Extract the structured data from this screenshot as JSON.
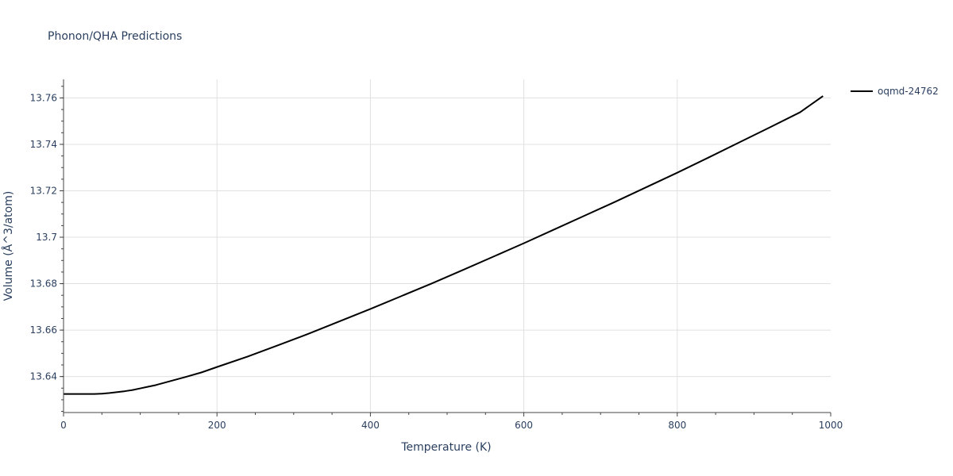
{
  "chart_data": {
    "type": "line",
    "title": "Phonon/QHA Predictions",
    "xlabel": "Temperature (K)",
    "ylabel": "Volume (Å^3/atom)",
    "xlim": [
      0,
      1000
    ],
    "ylim": [
      13.6245,
      13.768
    ],
    "x_ticks": [
      0,
      200,
      400,
      600,
      800,
      1000
    ],
    "x_tick_labels": [
      "0",
      "200",
      "400",
      "600",
      "800",
      "1000"
    ],
    "y_ticks": [
      13.64,
      13.66,
      13.68,
      13.7,
      13.72,
      13.74,
      13.76
    ],
    "y_tick_labels": [
      "13.64",
      "13.66",
      "13.68",
      "13.7",
      "13.72",
      "13.74",
      "13.76"
    ],
    "grid": true,
    "legend_position": "top-right",
    "series": [
      {
        "name": "oqmd-24762",
        "color": "#000000",
        "x": [
          0,
          10,
          20,
          30,
          40,
          50,
          60,
          70,
          80,
          90,
          100,
          110,
          120,
          140,
          160,
          180,
          200,
          240,
          280,
          320,
          360,
          400,
          440,
          480,
          520,
          560,
          600,
          640,
          680,
          720,
          760,
          800,
          840,
          880,
          920,
          960,
          990
        ],
        "y": [
          13.6325,
          13.6325,
          13.6325,
          13.6325,
          13.6325,
          13.6326,
          13.6329,
          13.6333,
          13.6337,
          13.6342,
          13.6349,
          13.6356,
          13.6363,
          13.6381,
          13.6399,
          13.6418,
          13.6441,
          13.6486,
          13.6535,
          13.6585,
          13.6638,
          13.6691,
          13.6746,
          13.6801,
          13.6858,
          13.6916,
          13.6974,
          13.7034,
          13.7094,
          13.7154,
          13.7216,
          13.7278,
          13.7342,
          13.7407,
          13.7472,
          13.7538,
          13.7608
        ]
      }
    ]
  }
}
